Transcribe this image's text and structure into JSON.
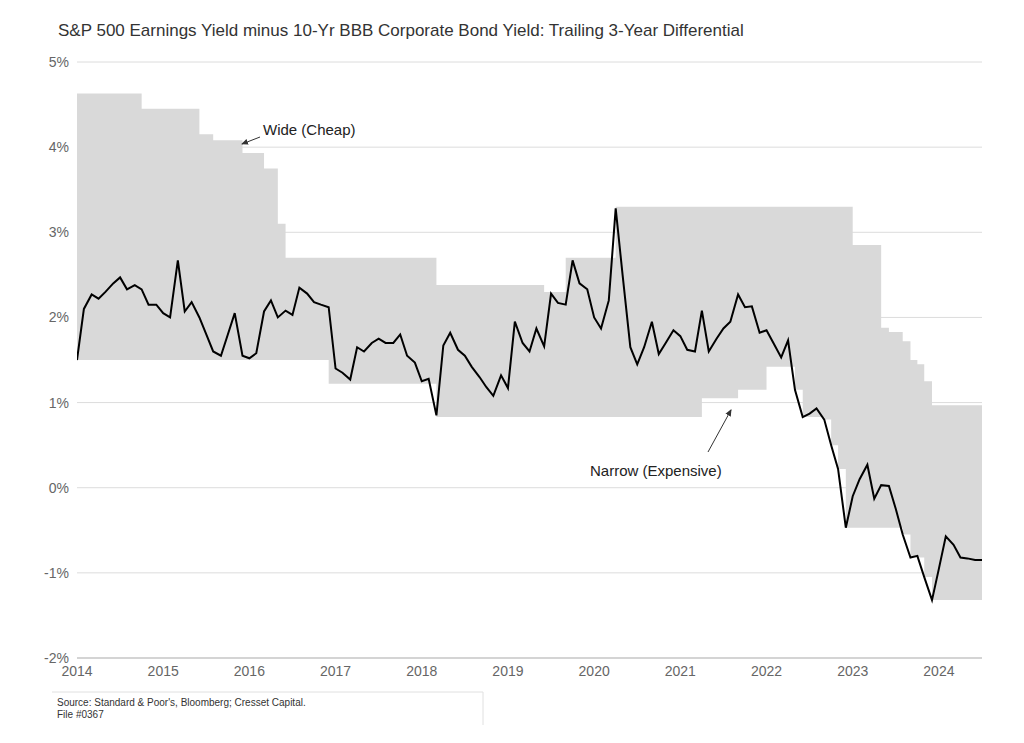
{
  "chart_data": {
    "type": "line",
    "title": "S&P 500 Earnings Yield minus 10-Yr BBB Corporate Bond Yield: Trailing 3-Year Differential",
    "x": [
      2014.0,
      2014.08,
      2014.17,
      2014.25,
      2014.33,
      2014.42,
      2014.5,
      2014.58,
      2014.67,
      2014.75,
      2014.83,
      2014.92,
      2015.0,
      2015.08,
      2015.17,
      2015.25,
      2015.33,
      2015.42,
      2015.5,
      2015.58,
      2015.67,
      2015.75,
      2015.83,
      2015.92,
      2016.0,
      2016.08,
      2016.17,
      2016.25,
      2016.33,
      2016.42,
      2016.5,
      2016.58,
      2016.67,
      2016.75,
      2016.83,
      2016.92,
      2017.0,
      2017.08,
      2017.17,
      2017.25,
      2017.33,
      2017.42,
      2017.5,
      2017.58,
      2017.67,
      2017.75,
      2017.83,
      2017.92,
      2018.0,
      2018.08,
      2018.17,
      2018.25,
      2018.33,
      2018.42,
      2018.5,
      2018.58,
      2018.67,
      2018.75,
      2018.83,
      2018.92,
      2019.0,
      2019.08,
      2019.17,
      2019.25,
      2019.33,
      2019.42,
      2019.5,
      2019.58,
      2019.67,
      2019.75,
      2019.83,
      2019.92,
      2020.0,
      2020.08,
      2020.17,
      2020.25,
      2020.33,
      2020.42,
      2020.5,
      2020.58,
      2020.67,
      2020.75,
      2020.83,
      2020.92,
      2021.0,
      2021.08,
      2021.17,
      2021.25,
      2021.33,
      2021.42,
      2021.5,
      2021.58,
      2021.67,
      2021.75,
      2021.83,
      2021.92,
      2022.0,
      2022.08,
      2022.17,
      2022.25,
      2022.33,
      2022.42,
      2022.5,
      2022.58,
      2022.67,
      2022.75,
      2022.83,
      2022.92,
      2023.0,
      2023.08,
      2023.17,
      2023.25,
      2023.33,
      2023.42,
      2023.5,
      2023.58,
      2023.67,
      2023.75,
      2023.83,
      2023.92,
      2024.0,
      2024.08,
      2024.17,
      2024.25,
      2024.33,
      2024.42,
      2024.5
    ],
    "series": [
      {
        "type": "area",
        "color": "#d9d9d9",
        "values": [
          [
            1.5,
            4.63
          ],
          [
            1.5,
            4.63
          ],
          [
            1.5,
            4.63
          ],
          [
            1.5,
            4.63
          ],
          [
            1.5,
            4.63
          ],
          [
            1.5,
            4.63
          ],
          [
            1.5,
            4.63
          ],
          [
            1.5,
            4.63
          ],
          [
            1.5,
            4.63
          ],
          [
            1.5,
            4.45
          ],
          [
            1.5,
            4.45
          ],
          [
            1.5,
            4.45
          ],
          [
            1.5,
            4.45
          ],
          [
            1.5,
            4.45
          ],
          [
            1.5,
            4.45
          ],
          [
            1.5,
            4.45
          ],
          [
            1.5,
            4.45
          ],
          [
            1.5,
            4.15
          ],
          [
            1.5,
            4.15
          ],
          [
            1.5,
            4.08
          ],
          [
            1.5,
            4.08
          ],
          [
            1.5,
            4.08
          ],
          [
            1.5,
            4.08
          ],
          [
            1.5,
            3.93
          ],
          [
            1.5,
            3.93
          ],
          [
            1.5,
            3.93
          ],
          [
            1.5,
            3.75
          ],
          [
            1.5,
            3.75
          ],
          [
            1.5,
            3.1
          ],
          [
            1.5,
            2.7
          ],
          [
            1.5,
            2.7
          ],
          [
            1.5,
            2.7
          ],
          [
            1.5,
            2.7
          ],
          [
            1.5,
            2.7
          ],
          [
            1.5,
            2.7
          ],
          [
            1.22,
            2.7
          ],
          [
            1.22,
            2.7
          ],
          [
            1.22,
            2.7
          ],
          [
            1.22,
            2.7
          ],
          [
            1.22,
            2.7
          ],
          [
            1.22,
            2.7
          ],
          [
            1.22,
            2.7
          ],
          [
            1.22,
            2.7
          ],
          [
            1.22,
            2.7
          ],
          [
            1.22,
            2.7
          ],
          [
            1.22,
            2.7
          ],
          [
            1.22,
            2.7
          ],
          [
            1.22,
            2.7
          ],
          [
            1.22,
            2.7
          ],
          [
            1.22,
            2.7
          ],
          [
            0.83,
            2.38
          ],
          [
            0.83,
            2.38
          ],
          [
            0.83,
            2.38
          ],
          [
            0.83,
            2.38
          ],
          [
            0.83,
            2.38
          ],
          [
            0.83,
            2.38
          ],
          [
            0.83,
            2.38
          ],
          [
            0.83,
            2.38
          ],
          [
            0.83,
            2.38
          ],
          [
            0.83,
            2.38
          ],
          [
            0.83,
            2.38
          ],
          [
            0.83,
            2.38
          ],
          [
            0.83,
            2.38
          ],
          [
            0.83,
            2.38
          ],
          [
            0.83,
            2.38
          ],
          [
            0.83,
            2.3
          ],
          [
            0.83,
            2.3
          ],
          [
            0.83,
            2.3
          ],
          [
            0.83,
            2.7
          ],
          [
            0.83,
            2.7
          ],
          [
            0.83,
            2.7
          ],
          [
            0.83,
            2.7
          ],
          [
            0.83,
            2.7
          ],
          [
            0.83,
            2.7
          ],
          [
            0.83,
            2.7
          ],
          [
            0.83,
            3.3
          ],
          [
            0.83,
            3.3
          ],
          [
            0.83,
            3.3
          ],
          [
            0.83,
            3.3
          ],
          [
            0.83,
            3.3
          ],
          [
            0.83,
            3.3
          ],
          [
            0.83,
            3.3
          ],
          [
            0.83,
            3.3
          ],
          [
            0.83,
            3.3
          ],
          [
            0.83,
            3.3
          ],
          [
            0.83,
            3.3
          ],
          [
            0.83,
            3.3
          ],
          [
            1.05,
            3.3
          ],
          [
            1.05,
            3.3
          ],
          [
            1.05,
            3.3
          ],
          [
            1.05,
            3.3
          ],
          [
            1.05,
            3.3
          ],
          [
            1.15,
            3.3
          ],
          [
            1.15,
            3.3
          ],
          [
            1.15,
            3.3
          ],
          [
            1.15,
            3.3
          ],
          [
            1.42,
            3.3
          ],
          [
            1.42,
            3.3
          ],
          [
            1.42,
            3.3
          ],
          [
            1.42,
            3.3
          ],
          [
            1.15,
            3.3
          ],
          [
            0.83,
            3.3
          ],
          [
            0.83,
            3.3
          ],
          [
            0.83,
            3.3
          ],
          [
            0.8,
            3.3
          ],
          [
            0.5,
            3.3
          ],
          [
            0.22,
            3.3
          ],
          [
            -0.47,
            3.3
          ],
          [
            -0.47,
            2.85
          ],
          [
            -0.47,
            2.85
          ],
          [
            -0.47,
            2.85
          ],
          [
            -0.47,
            2.85
          ],
          [
            -0.47,
            1.88
          ],
          [
            -0.47,
            1.83
          ],
          [
            -0.47,
            1.83
          ],
          [
            -0.55,
            1.72
          ],
          [
            -0.82,
            1.5
          ],
          [
            -0.82,
            1.45
          ],
          [
            -1.05,
            1.25
          ],
          [
            -1.32,
            0.97
          ],
          [
            -1.32,
            0.97
          ],
          [
            -1.32,
            0.97
          ],
          [
            -1.32,
            0.97
          ],
          [
            -1.32,
            0.97
          ],
          [
            -1.32,
            0.97
          ],
          [
            -1.32,
            0.97
          ],
          [
            -1.32,
            0.97
          ]
        ]
      },
      {
        "type": "line",
        "color": "#000000",
        "values": [
          1.5,
          2.1,
          2.27,
          2.22,
          2.3,
          2.4,
          2.47,
          2.33,
          2.38,
          2.33,
          2.15,
          2.15,
          2.05,
          2.0,
          2.67,
          2.07,
          2.18,
          2.0,
          1.8,
          1.6,
          1.55,
          1.8,
          2.05,
          1.55,
          1.52,
          1.58,
          2.07,
          2.2,
          2.0,
          2.08,
          2.03,
          2.35,
          2.28,
          2.18,
          2.15,
          2.12,
          1.4,
          1.35,
          1.27,
          1.65,
          1.6,
          1.7,
          1.75,
          1.7,
          1.7,
          1.8,
          1.55,
          1.47,
          1.25,
          1.28,
          0.85,
          1.67,
          1.82,
          1.62,
          1.55,
          1.42,
          1.3,
          1.18,
          1.08,
          1.32,
          1.17,
          1.95,
          1.7,
          1.6,
          1.87,
          1.66,
          2.28,
          2.17,
          2.15,
          2.67,
          2.4,
          2.33,
          2.0,
          1.87,
          2.2,
          3.28,
          2.5,
          1.65,
          1.45,
          1.65,
          1.95,
          1.57,
          1.7,
          1.85,
          1.78,
          1.62,
          1.6,
          2.08,
          1.6,
          1.75,
          1.87,
          1.95,
          2.27,
          2.12,
          2.13,
          1.82,
          1.85,
          1.7,
          1.53,
          1.73,
          1.15,
          0.83,
          0.87,
          0.93,
          0.8,
          0.5,
          0.22,
          -0.47,
          -0.1,
          0.1,
          0.27,
          -0.13,
          0.03,
          0.02,
          -0.25,
          -0.55,
          -0.82,
          -0.8,
          -1.05,
          -1.32,
          -0.95,
          -0.57,
          -0.67,
          -0.82,
          -0.83,
          -0.85,
          -0.85
        ]
      }
    ],
    "xlim": [
      2014,
      2024.5
    ],
    "xticks": [
      2014,
      2015,
      2016,
      2017,
      2018,
      2019,
      2020,
      2021,
      2022,
      2023,
      2024
    ],
    "ylim": [
      -2,
      5
    ],
    "yticks": [
      {
        "value": -2,
        "label": "-2%"
      },
      {
        "value": -1,
        "label": "-1%"
      },
      {
        "value": 0,
        "label": "0%"
      },
      {
        "value": 1,
        "label": "1%"
      },
      {
        "value": 2,
        "label": "2%"
      },
      {
        "value": 3,
        "label": "3%"
      },
      {
        "value": 4,
        "label": "4%"
      },
      {
        "value": 5,
        "label": "5%"
      }
    ],
    "grid": true,
    "annotations": [
      "Wide (Cheap)",
      "Narrow (Expensive)"
    ],
    "source": "Source:  Standard & Poor's, Bloomberg; Cresset Capital.",
    "file": "File #0367"
  }
}
